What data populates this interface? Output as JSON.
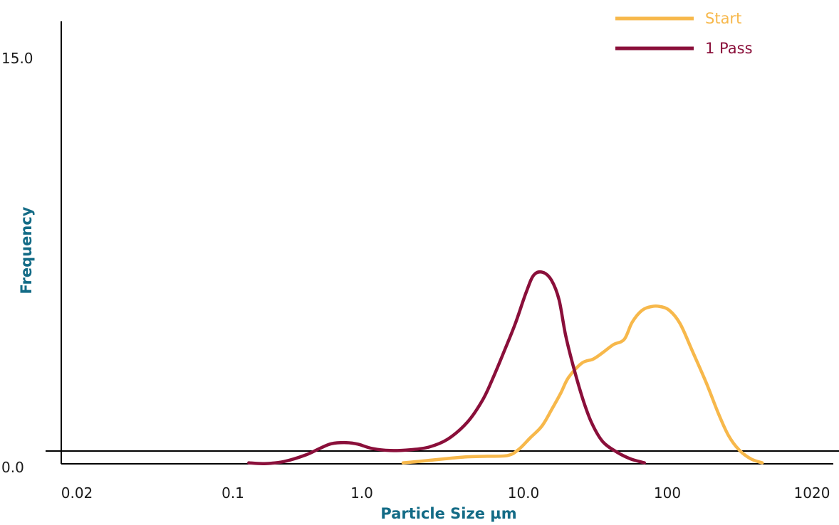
{
  "chart_data": {
    "type": "line",
    "title": "",
    "xlabel": "Particle Size µm",
    "ylabel": "Frequency",
    "x_scale": "log",
    "x_ticks": [
      {
        "value": 0.02,
        "label": "0.02"
      },
      {
        "value": 0.1,
        "label": "0.1"
      },
      {
        "value": 1,
        "label": "1.0"
      },
      {
        "value": 10,
        "label": "10.0"
      },
      {
        "value": 100,
        "label": "100"
      },
      {
        "value": 1020,
        "label": "1020"
      }
    ],
    "y_ticks": [
      {
        "value": 0,
        "label": "0.0"
      },
      {
        "value": 15,
        "label": "15.0"
      }
    ],
    "ylim": [
      0,
      15
    ],
    "legend_position": "top-right",
    "series": [
      {
        "name": "Start",
        "color": "#f7b84b",
        "points": [
          [
            1.8,
            -0.45
          ],
          [
            2.4,
            -0.38
          ],
          [
            3.2,
            -0.3
          ],
          [
            4.5,
            -0.22
          ],
          [
            6.0,
            -0.2
          ],
          [
            8.0,
            -0.17
          ],
          [
            9.3,
            0.05
          ],
          [
            11.0,
            0.5
          ],
          [
            13.0,
            0.95
          ],
          [
            15.0,
            1.6
          ],
          [
            17.0,
            2.2
          ],
          [
            19.0,
            2.8
          ],
          [
            23.0,
            3.35
          ],
          [
            27.0,
            3.5
          ],
          [
            31.0,
            3.75
          ],
          [
            36.0,
            4.05
          ],
          [
            42.0,
            4.25
          ],
          [
            47.0,
            4.9
          ],
          [
            54.0,
            5.35
          ],
          [
            62.0,
            5.5
          ],
          [
            70.0,
            5.5
          ],
          [
            80.0,
            5.35
          ],
          [
            93.0,
            4.85
          ],
          [
            110.0,
            3.85
          ],
          [
            135.0,
            2.6
          ],
          [
            160.0,
            1.45
          ],
          [
            185.0,
            0.6
          ],
          [
            215.0,
            0.05
          ],
          [
            255.0,
            -0.3
          ],
          [
            300.0,
            -0.45
          ]
        ]
      },
      {
        "name": "1 Pass",
        "color": "#8a0f3a",
        "points": [
          [
            0.2,
            -0.45
          ],
          [
            0.25,
            -0.48
          ],
          [
            0.33,
            -0.4
          ],
          [
            0.45,
            -0.15
          ],
          [
            0.55,
            0.1
          ],
          [
            0.65,
            0.28
          ],
          [
            0.8,
            0.32
          ],
          [
            0.95,
            0.26
          ],
          [
            1.15,
            0.1
          ],
          [
            1.5,
            0.02
          ],
          [
            2.0,
            0.05
          ],
          [
            2.6,
            0.15
          ],
          [
            3.4,
            0.45
          ],
          [
            4.5,
            1.1
          ],
          [
            5.6,
            1.95
          ],
          [
            6.5,
            2.8
          ],
          [
            7.6,
            3.8
          ],
          [
            8.9,
            4.85
          ],
          [
            10.4,
            6.05
          ],
          [
            11.6,
            6.7
          ],
          [
            13.2,
            6.8
          ],
          [
            14.9,
            6.5
          ],
          [
            16.6,
            5.75
          ],
          [
            18.3,
            4.35
          ],
          [
            20.7,
            3.05
          ],
          [
            23.5,
            1.9
          ],
          [
            26.5,
            1.05
          ],
          [
            31.0,
            0.35
          ],
          [
            38.0,
            -0.05
          ],
          [
            46.0,
            -0.3
          ],
          [
            56.0,
            -0.45
          ]
        ]
      }
    ]
  }
}
